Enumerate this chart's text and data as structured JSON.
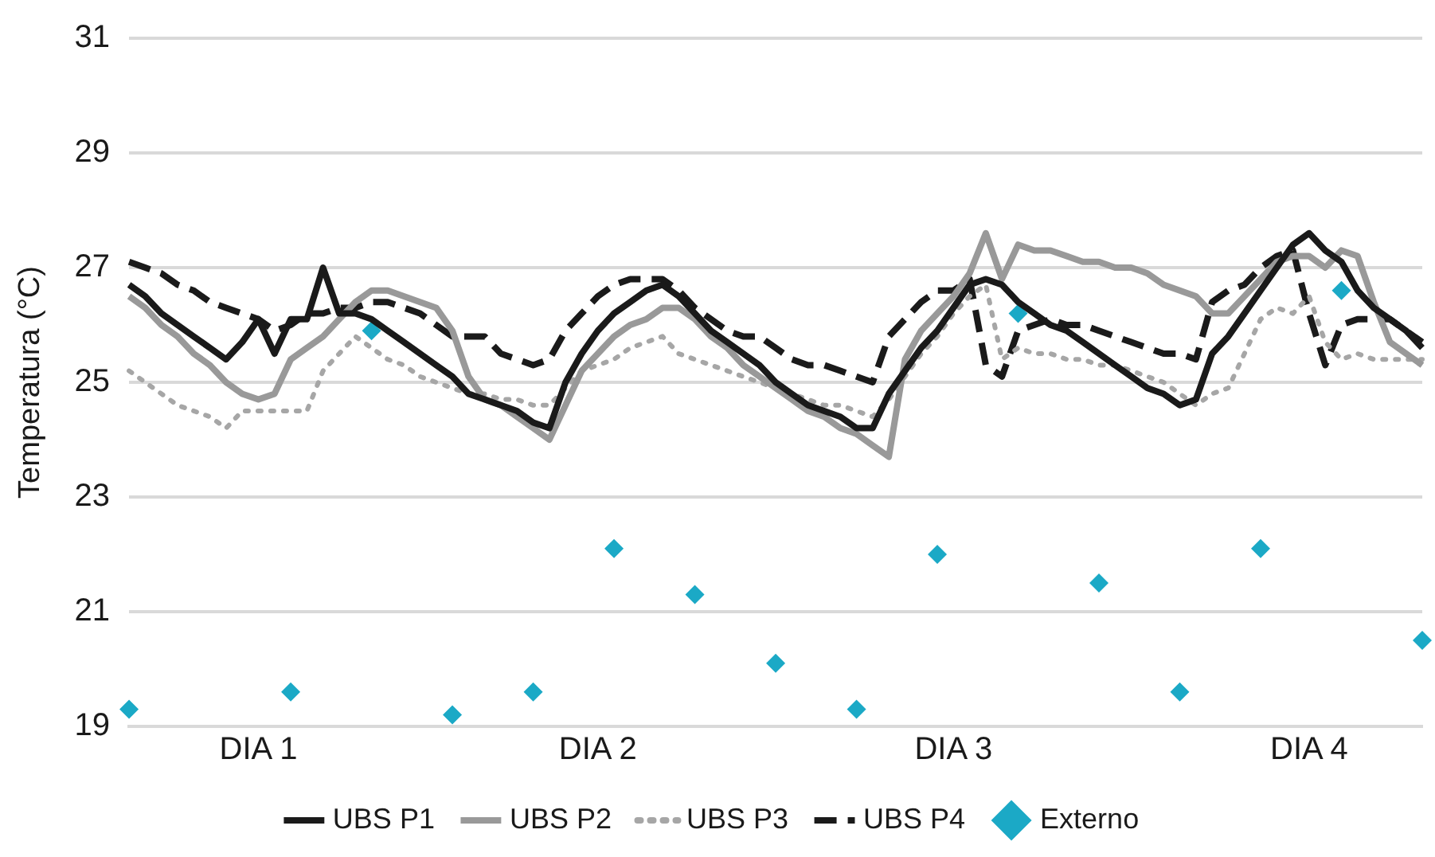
{
  "chart_data": {
    "type": "line",
    "ylabel": "Temperatura (°C)",
    "ylim": [
      19,
      31
    ],
    "yticks": [
      19,
      21,
      23,
      25,
      27,
      29,
      31
    ],
    "grid": "y",
    "legend": "bottom",
    "categories": [
      null,
      null,
      null,
      null,
      null,
      null,
      null,
      null,
      "DIA 1",
      null,
      null,
      null,
      null,
      null,
      null,
      null,
      null,
      null,
      null,
      null,
      null,
      null,
      null,
      null,
      null,
      null,
      null,
      null,
      null,
      "DIA 2",
      null,
      null,
      null,
      null,
      null,
      null,
      null,
      null,
      null,
      null,
      null,
      null,
      null,
      null,
      null,
      null,
      null,
      null,
      null,
      null,
      null,
      "DIA 3",
      null,
      null,
      null,
      null,
      null,
      null,
      null,
      null,
      null,
      null,
      null,
      null,
      null,
      null,
      null,
      null,
      null,
      null,
      null,
      null,
      null,
      "DIA 4",
      null,
      null,
      null,
      null,
      null,
      null,
      null
    ],
    "series": [
      {
        "name": "UBS P1",
        "color": "#1a1a1a",
        "line_style": "solid",
        "values": [
          26.7,
          26.5,
          26.2,
          26.0,
          25.8,
          25.6,
          25.4,
          25.7,
          26.1,
          25.5,
          26.1,
          26.1,
          27.0,
          26.2,
          26.2,
          26.1,
          25.9,
          25.7,
          25.5,
          25.3,
          25.1,
          24.8,
          24.7,
          24.6,
          24.5,
          24.3,
          24.2,
          25.0,
          25.5,
          25.9,
          26.2,
          26.4,
          26.6,
          26.7,
          26.5,
          26.2,
          25.9,
          25.7,
          25.5,
          25.3,
          25.0,
          24.8,
          24.6,
          24.5,
          24.4,
          24.2,
          24.2,
          24.8,
          25.2,
          25.6,
          25.9,
          26.3,
          26.7,
          26.8,
          26.7,
          26.4,
          26.2,
          26.0,
          25.9,
          25.7,
          25.5,
          25.3,
          25.1,
          24.9,
          24.8,
          24.6,
          24.7,
          25.5,
          25.8,
          26.2,
          26.6,
          27.0,
          27.4,
          27.6,
          27.3,
          27.1,
          26.6,
          26.3,
          26.1,
          25.9,
          25.6
        ]
      },
      {
        "name": "UBS P2",
        "color": "#999999",
        "line_style": "solid",
        "values": [
          26.5,
          26.3,
          26.0,
          25.8,
          25.5,
          25.3,
          25.0,
          24.8,
          24.7,
          24.8,
          25.4,
          25.6,
          25.8,
          26.1,
          26.4,
          26.6,
          26.6,
          26.5,
          26.4,
          26.3,
          25.9,
          25.1,
          24.7,
          24.6,
          24.4,
          24.2,
          24.0,
          24.6,
          25.2,
          25.5,
          25.8,
          26.0,
          26.1,
          26.3,
          26.3,
          26.1,
          25.8,
          25.6,
          25.3,
          25.1,
          24.9,
          24.7,
          24.5,
          24.4,
          24.2,
          24.1,
          23.9,
          23.7,
          25.4,
          25.9,
          26.2,
          26.5,
          26.9,
          27.6,
          26.8,
          27.4,
          27.3,
          27.3,
          27.2,
          27.1,
          27.1,
          27.0,
          27.0,
          26.9,
          26.7,
          26.6,
          26.5,
          26.2,
          26.2,
          26.5,
          26.8,
          27.1,
          27.2,
          27.2,
          27.0,
          27.3,
          27.2,
          26.4,
          25.7,
          25.5,
          25.3
        ]
      },
      {
        "name": "UBS P3",
        "color": "#a6a6a6",
        "line_style": "dotted",
        "values": [
          25.2,
          25.0,
          24.8,
          24.6,
          24.5,
          24.4,
          24.2,
          24.5,
          24.5,
          24.5,
          24.5,
          24.5,
          25.2,
          25.5,
          25.8,
          25.6,
          25.4,
          25.3,
          25.1,
          25.0,
          24.9,
          24.8,
          24.8,
          24.7,
          24.7,
          24.6,
          24.6,
          24.9,
          25.2,
          25.3,
          25.4,
          25.6,
          25.7,
          25.8,
          25.5,
          25.4,
          25.3,
          25.2,
          25.1,
          25.0,
          24.9,
          24.8,
          24.7,
          24.6,
          24.6,
          24.5,
          24.4,
          24.7,
          25.1,
          25.5,
          25.8,
          26.2,
          26.5,
          26.7,
          25.4,
          25.6,
          25.5,
          25.5,
          25.4,
          25.4,
          25.3,
          25.3,
          25.2,
          25.1,
          25.0,
          24.8,
          24.6,
          24.8,
          24.9,
          25.5,
          26.1,
          26.3,
          26.2,
          26.5,
          25.7,
          25.4,
          25.5,
          25.4,
          25.4,
          25.4,
          25.4
        ]
      },
      {
        "name": "UBS P4",
        "color": "#1a1a1a",
        "line_style": "dashed",
        "values": [
          27.1,
          27.0,
          26.9,
          26.7,
          26.6,
          26.4,
          26.3,
          26.2,
          26.1,
          25.9,
          26.0,
          26.2,
          26.2,
          26.3,
          26.3,
          26.4,
          26.4,
          26.3,
          26.2,
          26.0,
          25.8,
          25.8,
          25.8,
          25.5,
          25.4,
          25.3,
          25.4,
          25.9,
          26.2,
          26.5,
          26.7,
          26.8,
          26.8,
          26.8,
          26.6,
          26.3,
          26.1,
          25.9,
          25.8,
          25.8,
          25.6,
          25.4,
          25.3,
          25.3,
          25.2,
          25.1,
          25.0,
          25.8,
          26.1,
          26.4,
          26.6,
          26.6,
          26.8,
          25.3,
          25.1,
          25.9,
          26.0,
          26.1,
          26.0,
          26.0,
          25.9,
          25.8,
          25.7,
          25.6,
          25.5,
          25.5,
          25.4,
          26.4,
          26.6,
          26.7,
          27.0,
          27.2,
          27.3,
          26.2,
          25.3,
          26.0,
          26.1,
          26.1,
          26.1,
          25.9,
          25.7
        ]
      },
      {
        "name": "Externo",
        "type": "scatter",
        "color": "#1ba9c6",
        "marker": "diamond",
        "values": [
          19.3,
          null,
          null,
          null,
          null,
          null,
          null,
          null,
          null,
          null,
          19.6,
          null,
          null,
          null,
          null,
          25.9,
          null,
          null,
          null,
          null,
          19.2,
          null,
          null,
          null,
          null,
          19.6,
          null,
          null,
          null,
          null,
          22.1,
          null,
          null,
          null,
          null,
          21.3,
          null,
          null,
          null,
          null,
          20.1,
          null,
          null,
          null,
          null,
          19.3,
          null,
          null,
          null,
          null,
          22.0,
          null,
          null,
          null,
          null,
          26.2,
          null,
          null,
          null,
          null,
          21.5,
          null,
          null,
          null,
          null,
          19.6,
          null,
          null,
          null,
          null,
          22.1,
          null,
          null,
          null,
          null,
          26.6,
          null,
          null,
          null,
          null,
          20.5
        ]
      }
    ]
  }
}
